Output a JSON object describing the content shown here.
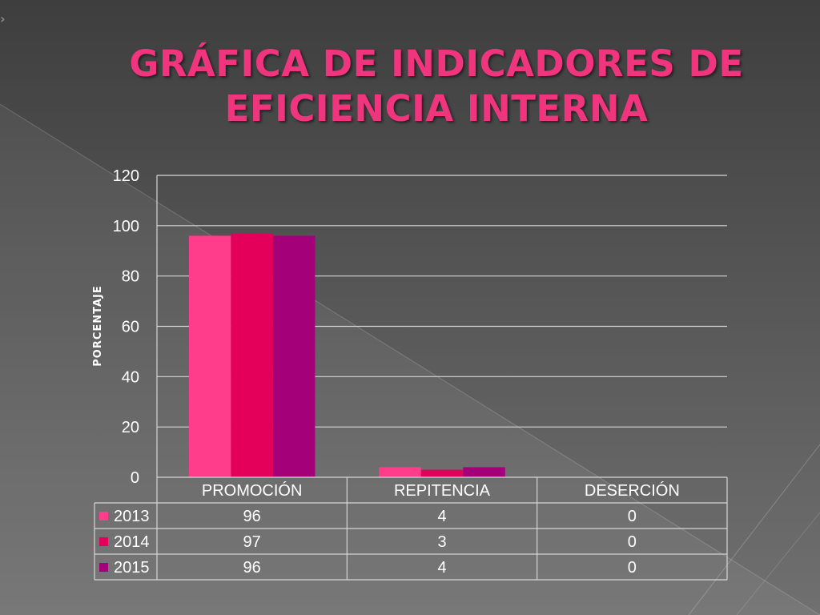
{
  "slide": {
    "title_lines": [
      "GRÁFICA DE INDICADORES DE",
      "EFICIENCIA INTERNA"
    ],
    "arrow_glyph": "›",
    "title_color": "#f0357e"
  },
  "chart_data": {
    "type": "bar",
    "title": "",
    "xlabel": "",
    "ylabel": "PORCENTAJE",
    "ylim": [
      0,
      120
    ],
    "yticks": [
      0,
      20,
      40,
      60,
      80,
      100,
      120
    ],
    "grid": true,
    "legend": "data-table",
    "categories": [
      "PROMOCIÓN",
      "REPITENCIA",
      "DESERCIÓN"
    ],
    "series": [
      {
        "name": "2013",
        "values": [
          96,
          4,
          0
        ],
        "color": "#ff3d8b"
      },
      {
        "name": "2014",
        "values": [
          97,
          3,
          0
        ],
        "color": "#e4005a"
      },
      {
        "name": "2015",
        "values": [
          96,
          4,
          0
        ],
        "color": "#a3007a"
      }
    ]
  }
}
